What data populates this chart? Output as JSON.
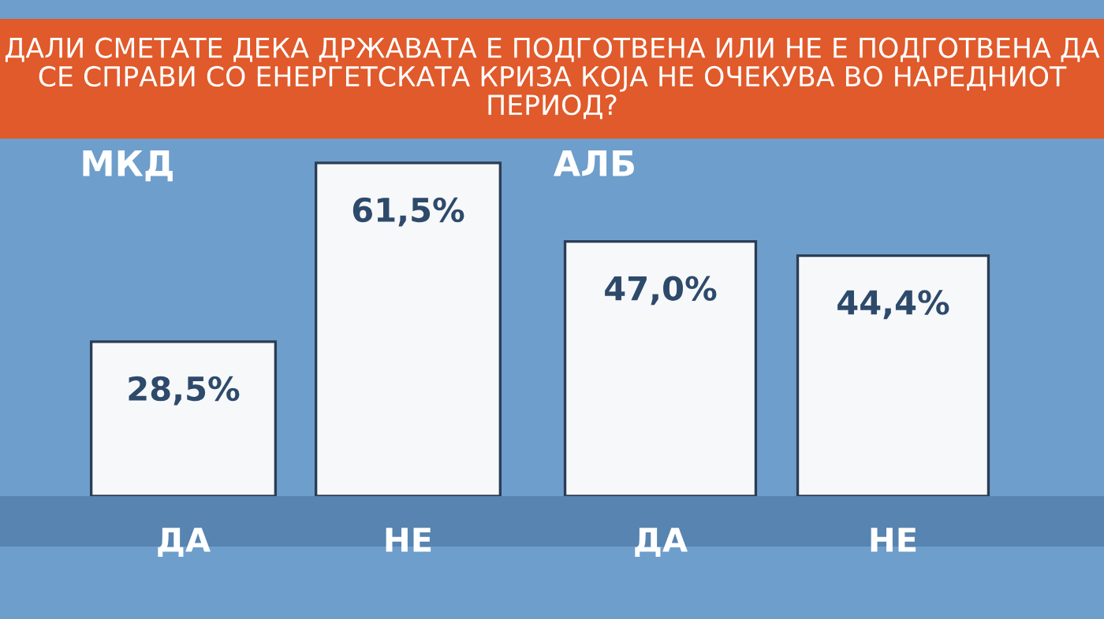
{
  "chart_data": [
    {
      "type": "bar",
      "title": "ДАЛИ СМЕТАТЕ ДЕКА ДРЖАВАТА Е ПОДГОТВЕНА ИЛИ НЕ Е ПОДГОТВЕНА ДА СЕ СПРАВИ СО ЕНЕРГЕТСКАТА КРИЗА КОЈА НЕ ОЧЕКУВА ВО НАРЕДНИОТ ПЕРИОД?",
      "subtitle": "МКД",
      "categories": [
        "ДА",
        "НЕ"
      ],
      "values": [
        28.5,
        61.5
      ],
      "value_labels": [
        "28,5%",
        "61,5%"
      ],
      "color": "#f7f8fa",
      "ylim": [
        0,
        66
      ],
      "tick_labels": "x",
      "grid": false,
      "legend": false
    },
    {
      "type": "bar",
      "subtitle": "АЛБ",
      "categories": [
        "ДА",
        "НЕ"
      ],
      "values": [
        47.0,
        44.4
      ],
      "value_labels": [
        "47,0%",
        "44,4%"
      ],
      "color": "#f7f8fa",
      "ylim": [
        0,
        66
      ],
      "tick_labels": "x",
      "grid": false,
      "legend": false
    }
  ]
}
